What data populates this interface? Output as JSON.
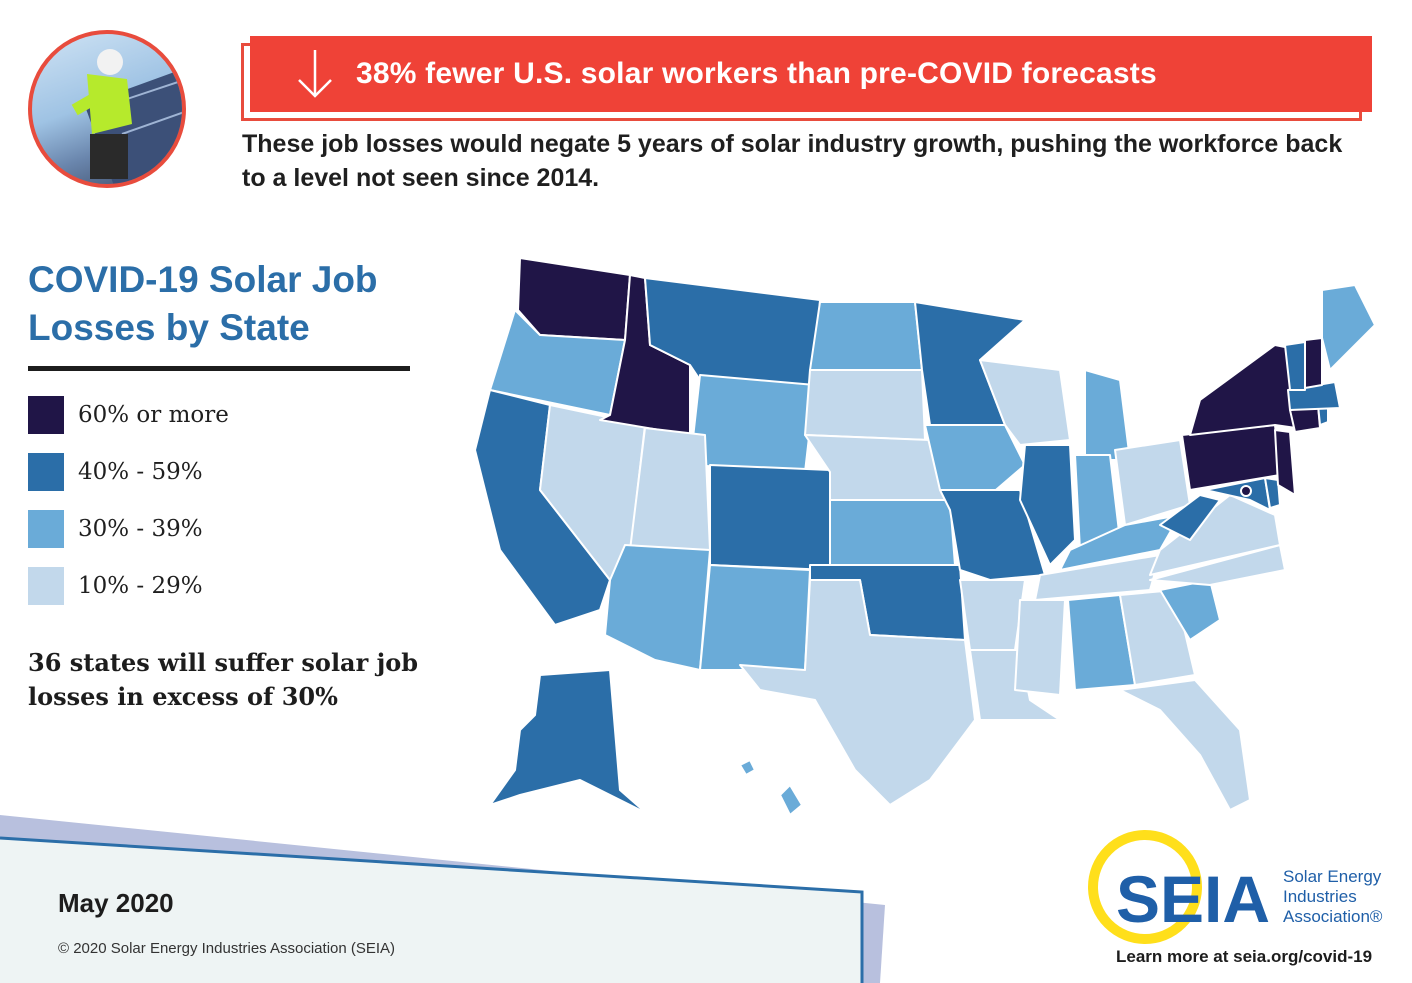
{
  "banner": {
    "headline": "38% fewer U.S. solar workers than pre-COVID forecasts",
    "subhead": "These job losses would negate 5 years of solar industry growth, pushing the workforce back to a level not seen since 2014.",
    "icon": "down-arrow-icon"
  },
  "photo": {
    "alt": "solar installer on roof"
  },
  "title": "COVID-19 Solar Job Losses by State",
  "legend": [
    {
      "label": "60% or more",
      "color": "#201547"
    },
    {
      "label": "40% - 59%",
      "color": "#2b6ea8"
    },
    {
      "label": "30% - 39%",
      "color": "#6aabd8"
    },
    {
      "label": "10% - 29%",
      "color": "#c2d8eb"
    }
  ],
  "callout": "36 states will suffer solar job losses in excess of 30%",
  "footer": {
    "date": "May 2020",
    "copyright": "© 2020 Solar Energy Industries Association (SEIA)",
    "learn_more": "Learn more at seia.org/covid-19"
  },
  "logo": {
    "wordmark": "SEIA",
    "name_line1": "Solar Energy",
    "name_line2": "Industries",
    "name_line3": "Association®"
  },
  "map_data": {
    "categories": {
      "60% or more": [
        "WA",
        "ID",
        "NY",
        "PA",
        "NJ",
        "NH",
        "CT",
        "DC"
      ],
      "40% - 59%": [
        "CA",
        "MT",
        "CO",
        "MN",
        "OK",
        "MO",
        "IL",
        "WV",
        "MD",
        "DE",
        "MA",
        "VT",
        "RI",
        "AK"
      ],
      "30% - 39%": [
        "OR",
        "WY",
        "ND",
        "IA",
        "KS",
        "AZ",
        "NM",
        "MI",
        "IN",
        "KY",
        "AL",
        "SC",
        "ME",
        "HI"
      ],
      "10% - 29%": [
        "NV",
        "UT",
        "SD",
        "NE",
        "TX",
        "AR",
        "LA",
        "MS",
        "TN",
        "GA",
        "FL",
        "NC",
        "VA",
        "OH",
        "WI"
      ]
    }
  }
}
